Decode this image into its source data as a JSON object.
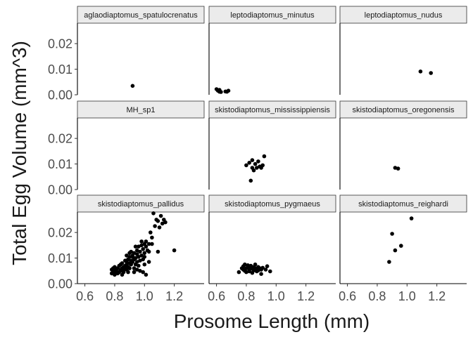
{
  "chart_data": {
    "type": "scatter",
    "facet_layout": "3x3",
    "xlabel": "Prosome Length (mm)",
    "ylabel": "Total Egg Volume (mm^3)",
    "xlim": [
      0.55,
      1.4
    ],
    "ylim": [
      0,
      0.028
    ],
    "xticks": [
      0.6,
      0.8,
      1.0,
      1.2
    ],
    "xtick_labels": [
      "0.6",
      "0.8",
      "1.0",
      "1.2"
    ],
    "yticks": [
      0.0,
      0.01,
      0.02
    ],
    "ytick_labels": [
      "0.00",
      "0.01",
      "0.02"
    ],
    "grid": false,
    "point_color": "#000000",
    "strip_fill": "#ebebeb",
    "facets": [
      {
        "name": "aglaodiaptomus_spatulocrenatus",
        "points": [
          [
            0.92,
            0.0035
          ]
        ]
      },
      {
        "name": "leptodiaptomus_minutus",
        "points": [
          [
            0.6,
            0.0022
          ],
          [
            0.61,
            0.0016
          ],
          [
            0.62,
            0.0012
          ],
          [
            0.63,
            0.0011
          ],
          [
            0.62,
            0.0019
          ],
          [
            0.66,
            0.0013
          ],
          [
            0.68,
            0.0016
          ],
          [
            0.67,
            0.0012
          ]
        ]
      },
      {
        "name": "leptodiaptomus_nudus",
        "points": [
          [
            1.09,
            0.0091
          ],
          [
            1.16,
            0.0085
          ]
        ]
      },
      {
        "name": "MH_sp1",
        "points": []
      },
      {
        "name": "skistodiaptomus_mississippiensis",
        "points": [
          [
            0.8,
            0.0095
          ],
          [
            0.82,
            0.0105
          ],
          [
            0.83,
            0.0035
          ],
          [
            0.84,
            0.0115
          ],
          [
            0.85,
            0.0075
          ],
          [
            0.86,
            0.01
          ],
          [
            0.87,
            0.0085
          ],
          [
            0.88,
            0.011
          ],
          [
            0.89,
            0.009
          ],
          [
            0.9,
            0.0085
          ],
          [
            0.91,
            0.0095
          ],
          [
            0.92,
            0.013
          ],
          [
            0.84,
            0.0085
          ]
        ]
      },
      {
        "name": "skistodiaptomus_oregonensis",
        "points": [
          [
            0.92,
            0.0085
          ],
          [
            0.94,
            0.0082
          ]
        ]
      },
      {
        "name": "skistodiaptomus_pallidus",
        "points": [
          [
            0.78,
            0.0055
          ],
          [
            0.78,
            0.004
          ],
          [
            0.79,
            0.005
          ],
          [
            0.79,
            0.006
          ],
          [
            0.8,
            0.0045
          ],
          [
            0.8,
            0.0035
          ],
          [
            0.8,
            0.0065
          ],
          [
            0.81,
            0.005
          ],
          [
            0.81,
            0.0055
          ],
          [
            0.82,
            0.004
          ],
          [
            0.82,
            0.006
          ],
          [
            0.83,
            0.0045
          ],
          [
            0.83,
            0.007
          ],
          [
            0.84,
            0.0055
          ],
          [
            0.84,
            0.005
          ],
          [
            0.84,
            0.0075
          ],
          [
            0.85,
            0.006
          ],
          [
            0.85,
            0.0035
          ],
          [
            0.85,
            0.008
          ],
          [
            0.86,
            0.0065
          ],
          [
            0.86,
            0.0055
          ],
          [
            0.86,
            0.0045
          ],
          [
            0.87,
            0.007
          ],
          [
            0.87,
            0.009
          ],
          [
            0.87,
            0.006
          ],
          [
            0.88,
            0.0075
          ],
          [
            0.88,
            0.0085
          ],
          [
            0.88,
            0.0055
          ],
          [
            0.88,
            0.011
          ],
          [
            0.89,
            0.0095
          ],
          [
            0.89,
            0.0065
          ],
          [
            0.89,
            0.0045
          ],
          [
            0.9,
            0.008
          ],
          [
            0.9,
            0.0105
          ],
          [
            0.9,
            0.012
          ],
          [
            0.9,
            0.006
          ],
          [
            0.91,
            0.009
          ],
          [
            0.91,
            0.0075
          ],
          [
            0.91,
            0.0125
          ],
          [
            0.92,
            0.0085
          ],
          [
            0.92,
            0.0105
          ],
          [
            0.92,
            0.011
          ],
          [
            0.93,
            0.0095
          ],
          [
            0.93,
            0.012
          ],
          [
            0.93,
            0.006
          ],
          [
            0.94,
            0.0145
          ],
          [
            0.94,
            0.01
          ],
          [
            0.94,
            0.0075
          ],
          [
            0.95,
            0.0115
          ],
          [
            0.95,
            0.0085
          ],
          [
            0.95,
            0.013
          ],
          [
            0.96,
            0.0105
          ],
          [
            0.96,
            0.0145
          ],
          [
            0.96,
            0.007
          ],
          [
            0.97,
            0.0125
          ],
          [
            0.97,
            0.009
          ],
          [
            0.98,
            0.015
          ],
          [
            0.98,
            0.011
          ],
          [
            0.98,
            0.0165
          ],
          [
            0.99,
            0.0135
          ],
          [
            0.99,
            0.0095
          ],
          [
            1.0,
            0.0155
          ],
          [
            1.0,
            0.012
          ],
          [
            1.0,
            0.0105
          ],
          [
            1.01,
            0.0145
          ],
          [
            1.01,
            0.0165
          ],
          [
            1.01,
            0.0035
          ],
          [
            1.02,
            0.013
          ],
          [
            1.03,
            0.0155
          ],
          [
            1.03,
            0.0125
          ],
          [
            1.04,
            0.02
          ],
          [
            1.05,
            0.018
          ],
          [
            1.05,
            0.0155
          ],
          [
            1.06,
            0.0275
          ],
          [
            1.07,
            0.0225
          ],
          [
            1.08,
            0.025
          ],
          [
            1.09,
            0.0245
          ],
          [
            1.1,
            0.022
          ],
          [
            1.11,
            0.0265
          ],
          [
            1.12,
            0.0235
          ],
          [
            1.13,
            0.025
          ],
          [
            1.14,
            0.024
          ],
          [
            1.09,
            0.0125
          ],
          [
            1.2,
            0.013
          ],
          [
            0.97,
            0.005
          ],
          [
            0.99,
            0.0045
          ],
          [
            0.93,
            0.0045
          ],
          [
            0.95,
            0.0055
          ],
          [
            1.0,
            0.0075
          ],
          [
            1.03,
            0.0085
          ]
        ]
      },
      {
        "name": "skistodiaptomus_pygmaeus",
        "points": [
          [
            0.75,
            0.0045
          ],
          [
            0.77,
            0.006
          ],
          [
            0.78,
            0.0055
          ],
          [
            0.78,
            0.0068
          ],
          [
            0.79,
            0.005
          ],
          [
            0.79,
            0.0075
          ],
          [
            0.8,
            0.006
          ],
          [
            0.8,
            0.0045
          ],
          [
            0.81,
            0.0065
          ],
          [
            0.81,
            0.0072
          ],
          [
            0.82,
            0.0055
          ],
          [
            0.82,
            0.0048
          ],
          [
            0.83,
            0.0062
          ],
          [
            0.83,
            0.007
          ],
          [
            0.84,
            0.0058
          ],
          [
            0.84,
            0.0042
          ],
          [
            0.85,
            0.0065
          ],
          [
            0.85,
            0.0052
          ],
          [
            0.86,
            0.006
          ],
          [
            0.86,
            0.0075
          ],
          [
            0.87,
            0.0048
          ],
          [
            0.87,
            0.0058
          ],
          [
            0.88,
            0.0065
          ],
          [
            0.88,
            0.0052
          ],
          [
            0.89,
            0.006
          ],
          [
            0.9,
            0.0055
          ],
          [
            0.9,
            0.0038
          ],
          [
            0.91,
            0.0062
          ],
          [
            0.93,
            0.0055
          ],
          [
            0.94,
            0.0068
          ],
          [
            0.96,
            0.0048
          ]
        ]
      },
      {
        "name": "skistodiaptomus_reighardi",
        "points": [
          [
            0.88,
            0.0085
          ],
          [
            0.9,
            0.0195
          ],
          [
            0.92,
            0.013
          ],
          [
            0.96,
            0.0148
          ],
          [
            1.03,
            0.0255
          ]
        ]
      }
    ]
  }
}
